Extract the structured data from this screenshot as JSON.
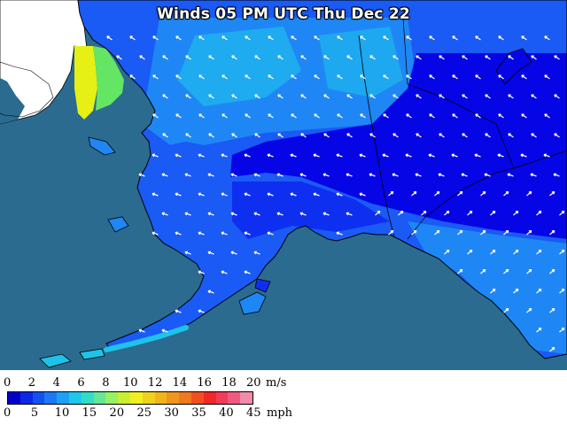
{
  "title": "Winds 05 PM UTC Thu Dec 22",
  "legend": {
    "ms_ticks": [
      "0",
      "2",
      "4",
      "6",
      "8",
      "10",
      "12",
      "14",
      "16",
      "18",
      "20"
    ],
    "ms_unit": "m/s",
    "mph_ticks": [
      "0",
      "5",
      "10",
      "15",
      "20",
      "25",
      "30",
      "35",
      "40",
      "45"
    ],
    "mph_unit": "mph",
    "colors": [
      "#0000c8",
      "#0a28e6",
      "#1450f0",
      "#1e78f5",
      "#1ea0f5",
      "#1ec8eb",
      "#32dcc8",
      "#64e696",
      "#96f064",
      "#c8f032",
      "#f0f01e",
      "#f0d21e",
      "#f0b41e",
      "#f0961e",
      "#f0781e",
      "#f0501e",
      "#f02828",
      "#f03c5a",
      "#f05a82",
      "#f08caa"
    ]
  },
  "map_colors": {
    "ocean": "#2b6b8f",
    "land_outside": "#ffffff",
    "calm": "#0505e6",
    "light": "#0f2ff0",
    "moderate": "#1a5af5",
    "breezy": "#1e87f5",
    "strong": "#1ec3eb",
    "yellow_zone": "#e6f014",
    "green_zone": "#64e664"
  }
}
